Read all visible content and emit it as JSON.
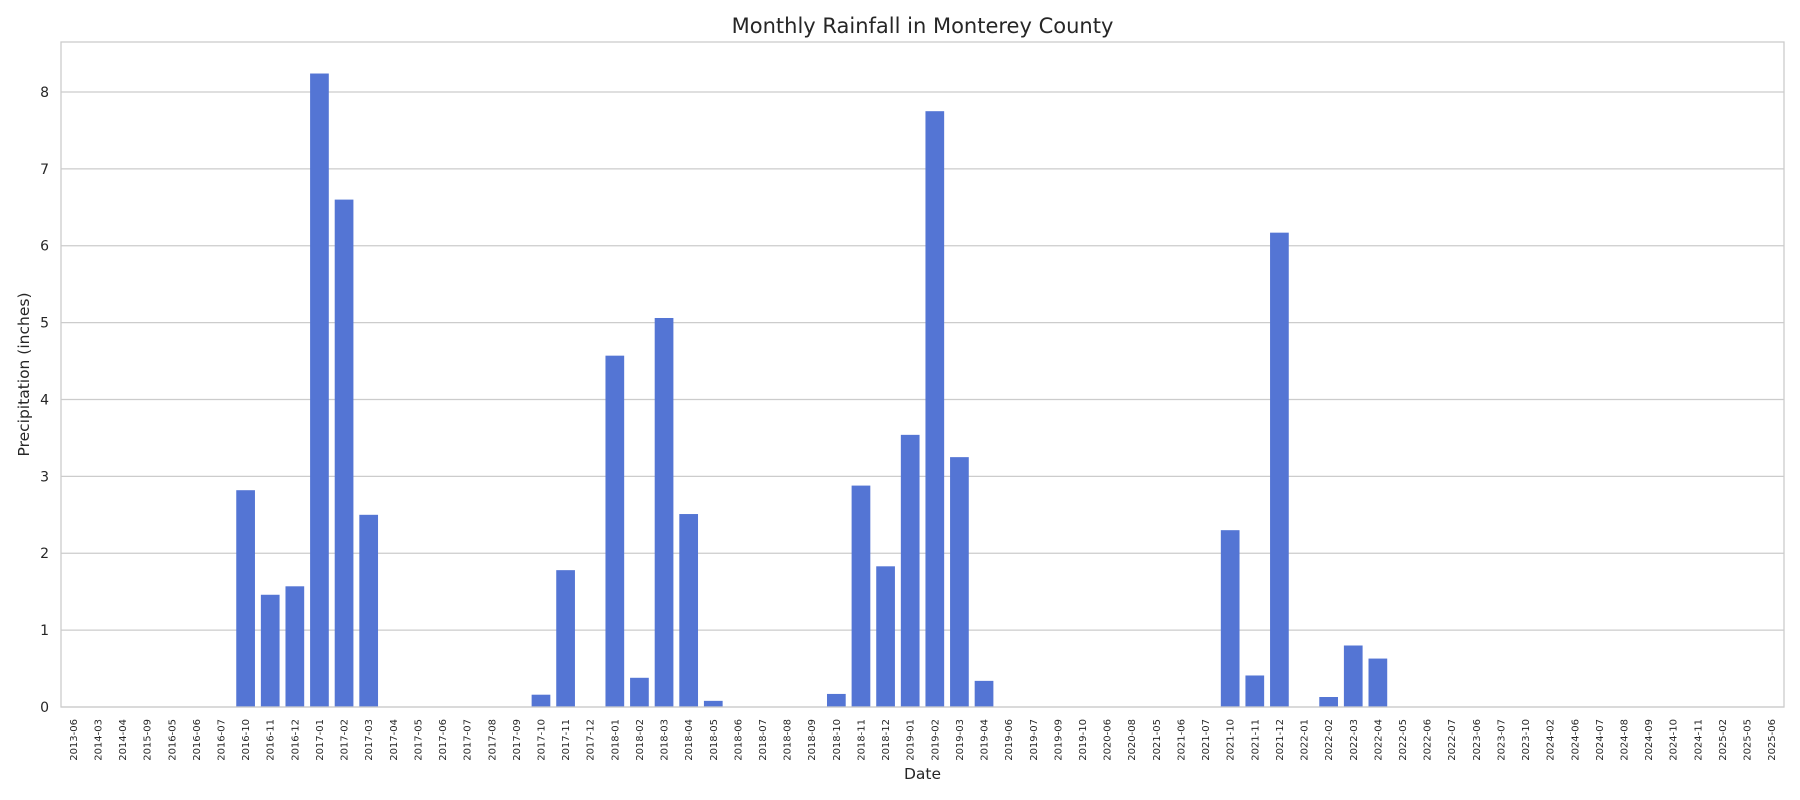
{
  "chart_data": {
    "type": "bar",
    "title": "Monthly Rainfall in Monterey County",
    "xlabel": "Date",
    "ylabel": "Precipitation (inches)",
    "ylim": [
      0,
      8.65
    ],
    "yticks": [
      0,
      1,
      2,
      3,
      4,
      5,
      6,
      7,
      8
    ],
    "grid": true,
    "bar_color": "#5475d4",
    "categories": [
      "2013-06",
      "2014-03",
      "2014-04",
      "2015-09",
      "2016-05",
      "2016-06",
      "2016-07",
      "2016-10",
      "2016-11",
      "2016-12",
      "2017-01",
      "2017-02",
      "2017-03",
      "2017-04",
      "2017-05",
      "2017-06",
      "2017-07",
      "2017-08",
      "2017-09",
      "2017-10",
      "2017-11",
      "2017-12",
      "2018-01",
      "2018-02",
      "2018-03",
      "2018-04",
      "2018-05",
      "2018-06",
      "2018-07",
      "2018-08",
      "2018-09",
      "2018-10",
      "2018-11",
      "2018-12",
      "2019-01",
      "2019-02",
      "2019-03",
      "2019-04",
      "2019-06",
      "2019-07",
      "2019-09",
      "2019-10",
      "2020-06",
      "2020-08",
      "2021-05",
      "2021-06",
      "2021-07",
      "2021-10",
      "2021-11",
      "2021-12",
      "2022-01",
      "2022-02",
      "2022-03",
      "2022-04",
      "2022-05",
      "2022-06",
      "2022-07",
      "2023-06",
      "2023-07",
      "2023-10",
      "2024-02",
      "2024-06",
      "2024-07",
      "2024-08",
      "2024-09",
      "2024-10",
      "2024-11",
      "2025-02",
      "2025-05",
      "2025-06"
    ],
    "values": [
      0,
      0,
      0,
      0,
      0,
      0,
      0,
      2.82,
      1.46,
      1.57,
      8.24,
      6.6,
      2.5,
      0,
      0,
      0,
      0,
      0,
      0,
      0.16,
      1.78,
      0,
      4.57,
      0.38,
      5.06,
      2.51,
      0.08,
      0,
      0,
      0,
      0,
      0.17,
      2.88,
      1.83,
      3.54,
      7.75,
      3.25,
      0.34,
      0,
      0,
      0,
      0,
      0,
      0,
      0,
      0,
      0,
      2.3,
      0.41,
      6.17,
      0,
      0.13,
      0.8,
      0.63,
      0,
      0,
      0,
      0,
      0,
      0,
      0,
      0,
      0,
      0,
      0,
      0,
      0,
      0,
      0,
      0
    ]
  }
}
